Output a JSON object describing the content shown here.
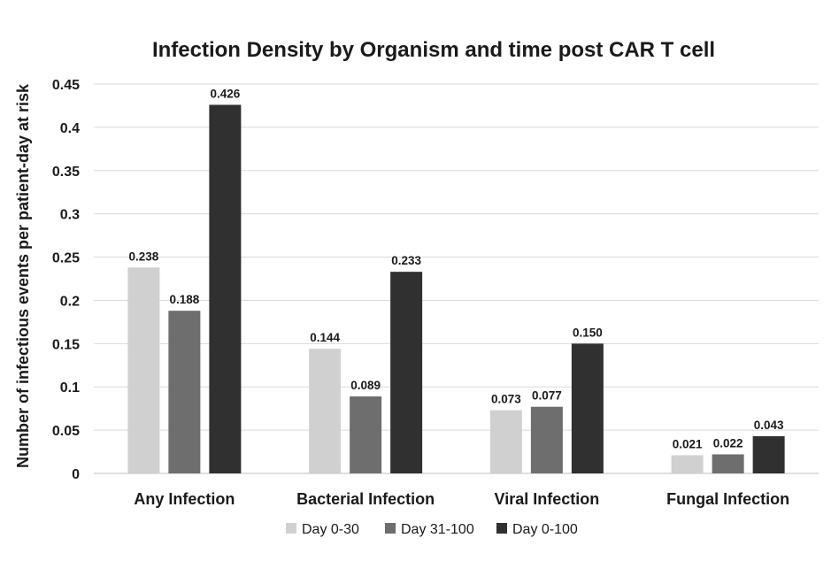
{
  "chart_data": {
    "type": "bar",
    "title": "Infection Density by Organism and time post CAR T cell",
    "xlabel": "",
    "ylabel": "Number of infectious events per patient-day at risk",
    "categories": [
      "Any Infection",
      "Bacterial Infection",
      "Viral Infection",
      "Fungal Infection"
    ],
    "series": [
      {
        "name": "Day 0-30",
        "color": "#d0d0d0",
        "values": [
          0.238,
          0.144,
          0.073,
          0.021
        ],
        "labels": [
          "0.238",
          "0.144",
          "0.073",
          "0.021"
        ]
      },
      {
        "name": "Day 31-100",
        "color": "#6e6e6e",
        "values": [
          0.188,
          0.089,
          0.077,
          0.022
        ],
        "labels": [
          "0.188",
          "0.089",
          "0.077",
          "0.022"
        ]
      },
      {
        "name": "Day 0-100",
        "color": "#303030",
        "values": [
          0.426,
          0.233,
          0.15,
          0.043
        ],
        "labels": [
          "0.426",
          "0.233",
          "0.150",
          "0.043"
        ]
      }
    ],
    "ylim": [
      0,
      0.45
    ],
    "yticks": [
      "0",
      "0.05",
      "0.1",
      "0.15",
      "0.2",
      "0.25",
      "0.3",
      "0.35",
      "0.4",
      "0.45"
    ],
    "grid": true,
    "legend_position": "bottom"
  }
}
